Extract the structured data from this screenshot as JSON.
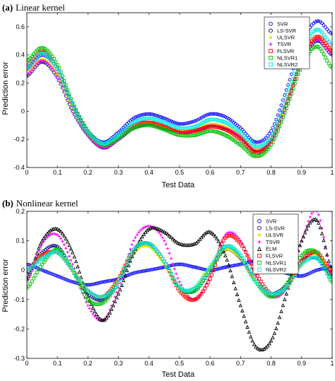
{
  "chart_data": [
    {
      "type": "line",
      "title": "(a) Linear kernel",
      "title_label": "(a)",
      "title_text": "Linear kernel",
      "xlabel": "Test Data",
      "ylabel": "Prediction error",
      "xlim": [
        0,
        1
      ],
      "ylim": [
        -0.4,
        0.7
      ],
      "xticks": [
        "0",
        "0.1",
        "0.2",
        "0.3",
        "0.4",
        "0.5",
        "0.6",
        "0.7",
        "0.8",
        "0.9",
        "1"
      ],
      "yticks": [
        "-0.4",
        "-0.2",
        "0",
        "0.2",
        "0.4",
        "0.6"
      ],
      "ytick_values": [
        -0.4,
        -0.2,
        0,
        0.2,
        0.4,
        0.6
      ],
      "legend_position": "top-right",
      "x": [
        0,
        0.05,
        0.1,
        0.15,
        0.2,
        0.25,
        0.3,
        0.35,
        0.4,
        0.45,
        0.5,
        0.55,
        0.6,
        0.65,
        0.7,
        0.75,
        0.8,
        0.85,
        0.9,
        0.95,
        1
      ],
      "series": [
        {
          "name": "SVR",
          "color": "#0000ff",
          "marker": "circle",
          "values": [
            0.3,
            0.4,
            0.3,
            0.05,
            -0.14,
            -0.22,
            -0.15,
            -0.05,
            -0.02,
            -0.05,
            -0.09,
            -0.07,
            -0.02,
            -0.04,
            -0.12,
            -0.22,
            -0.14,
            0.15,
            0.48,
            0.64,
            0.55
          ]
        },
        {
          "name": "LS-SVR",
          "color": "#000080",
          "marker": "circle",
          "values": [
            0.25,
            0.35,
            0.24,
            0.0,
            -0.17,
            -0.26,
            -0.2,
            -0.12,
            -0.09,
            -0.12,
            -0.15,
            -0.14,
            -0.1,
            -0.12,
            -0.18,
            -0.28,
            -0.2,
            0.06,
            0.35,
            0.5,
            0.4
          ]
        },
        {
          "name": "ULSVR",
          "color": "#e8e800",
          "marker": "star",
          "values": [
            0.27,
            0.37,
            0.26,
            0.02,
            -0.16,
            -0.25,
            -0.19,
            -0.11,
            -0.08,
            -0.11,
            -0.14,
            -0.13,
            -0.09,
            -0.11,
            -0.17,
            -0.27,
            -0.19,
            0.07,
            0.37,
            0.52,
            0.42
          ]
        },
        {
          "name": "TSVR",
          "color": "#ff00ff",
          "marker": "plus",
          "values": [
            0.26,
            0.36,
            0.25,
            0.01,
            -0.17,
            -0.26,
            -0.2,
            -0.12,
            -0.09,
            -0.12,
            -0.15,
            -0.14,
            -0.1,
            -0.12,
            -0.18,
            -0.28,
            -0.2,
            0.06,
            0.36,
            0.51,
            0.41
          ]
        },
        {
          "name": "FLSVR",
          "color": "#ff0000",
          "marker": "square",
          "values": [
            0.32,
            0.42,
            0.3,
            0.04,
            -0.15,
            -0.24,
            -0.18,
            -0.1,
            -0.08,
            -0.11,
            -0.15,
            -0.14,
            -0.11,
            -0.13,
            -0.2,
            -0.29,
            -0.22,
            0.04,
            0.36,
            0.53,
            0.43
          ]
        },
        {
          "name": "NLSVR1",
          "color": "#00c000",
          "marker": "square",
          "values": [
            0.36,
            0.45,
            0.33,
            0.06,
            -0.14,
            -0.24,
            -0.19,
            -0.12,
            -0.1,
            -0.13,
            -0.17,
            -0.17,
            -0.14,
            -0.17,
            -0.24,
            -0.32,
            -0.24,
            0.02,
            0.32,
            0.46,
            0.31
          ]
        },
        {
          "name": "NLSVR2",
          "color": "#00e8e8",
          "marker": "square",
          "values": [
            0.31,
            0.41,
            0.3,
            0.04,
            -0.15,
            -0.23,
            -0.17,
            -0.08,
            -0.05,
            -0.08,
            -0.12,
            -0.11,
            -0.06,
            -0.08,
            -0.15,
            -0.25,
            -0.18,
            0.1,
            0.42,
            0.58,
            0.47
          ]
        }
      ]
    },
    {
      "type": "line",
      "title": "(b) Nonlinear kernel",
      "title_label": "(b)",
      "title_text": "Nonlinear kernel",
      "xlabel": "Test Data",
      "ylabel": "Prediction error",
      "xlim": [
        0,
        1
      ],
      "ylim": [
        -0.3,
        0.2
      ],
      "xticks": [
        "0",
        "0.1",
        "0.2",
        "0.3",
        "0.4",
        "0.5",
        "0.6",
        "0.7",
        "0.8",
        "0.9",
        "1"
      ],
      "yticks": [
        "-0.3",
        "-0.2",
        "-0.1",
        "0",
        "0.1",
        "0.2"
      ],
      "ytick_values": [
        -0.3,
        -0.2,
        -0.1,
        0,
        0.1,
        0.2
      ],
      "legend_position": "top-right",
      "x": [
        0,
        0.05,
        0.1,
        0.15,
        0.2,
        0.25,
        0.3,
        0.35,
        0.4,
        0.45,
        0.5,
        0.55,
        0.6,
        0.65,
        0.7,
        0.75,
        0.8,
        0.85,
        0.9,
        0.95,
        1
      ],
      "series": [
        {
          "name": "SVR",
          "color": "#0000ff",
          "marker": "circle",
          "values": [
            0.02,
            0.0,
            -0.02,
            -0.04,
            -0.05,
            -0.04,
            -0.03,
            -0.01,
            0.0,
            0.01,
            0.02,
            0.01,
            0.0,
            0.01,
            0.02,
            0.03,
            0.01,
            -0.01,
            -0.02,
            0.0,
            0.01
          ]
        },
        {
          "name": "LS-SVR",
          "color": "#000080",
          "marker": "circle",
          "values": [
            -0.01,
            0.06,
            0.08,
            0.0,
            -0.08,
            -0.1,
            -0.04,
            0.06,
            0.09,
            0.03,
            -0.06,
            -0.07,
            0.0,
            0.07,
            0.04,
            -0.04,
            -0.08,
            -0.05,
            0.03,
            0.04,
            -0.02
          ]
        },
        {
          "name": "ULSVR",
          "color": "#e8e800",
          "marker": "star",
          "values": [
            0.0,
            0.05,
            0.06,
            0.0,
            -0.07,
            -0.09,
            -0.03,
            0.06,
            0.08,
            0.02,
            -0.06,
            -0.06,
            0.01,
            0.07,
            0.04,
            -0.04,
            -0.08,
            -0.06,
            0.02,
            0.05,
            0.0
          ]
        },
        {
          "name": "TSVR",
          "color": "#ff00ff",
          "marker": "plus",
          "values": [
            -0.04,
            0.09,
            0.12,
            0.02,
            -0.12,
            -0.17,
            -0.06,
            0.1,
            0.15,
            0.1,
            -0.04,
            -0.1,
            -0.02,
            0.12,
            0.1,
            -0.02,
            -0.09,
            -0.06,
            0.1,
            0.2,
            -0.02
          ]
        },
        {
          "name": "ELM",
          "color": "#000000",
          "marker": "triangle",
          "values": [
            -0.03,
            0.1,
            0.14,
            0.06,
            -0.09,
            -0.17,
            -0.08,
            0.06,
            0.14,
            0.13,
            0.09,
            0.09,
            0.13,
            0.05,
            -0.12,
            -0.26,
            -0.24,
            -0.08,
            0.1,
            0.17,
            0.0
          ]
        },
        {
          "name": "FLSVR",
          "color": "#ff0000",
          "marker": "square",
          "values": [
            0.0,
            0.05,
            0.06,
            0.0,
            -0.07,
            -0.09,
            -0.03,
            0.07,
            0.09,
            0.03,
            -0.07,
            -0.1,
            -0.03,
            0.11,
            0.09,
            -0.01,
            -0.08,
            -0.06,
            0.03,
            0.06,
            -0.01
          ]
        },
        {
          "name": "NLSVR1",
          "color": "#00c000",
          "marker": "square",
          "values": [
            -0.06,
            0.02,
            0.07,
            0.0,
            -0.1,
            -0.11,
            -0.04,
            0.07,
            0.09,
            0.03,
            -0.06,
            -0.07,
            0.0,
            0.08,
            0.05,
            -0.04,
            -0.09,
            -0.05,
            0.05,
            0.06,
            -0.04
          ]
        },
        {
          "name": "NLSVR2",
          "color": "#00e8e8",
          "marker": "square",
          "values": [
            0.0,
            0.04,
            0.06,
            0.0,
            -0.07,
            -0.09,
            -0.04,
            0.07,
            0.09,
            0.03,
            -0.06,
            -0.06,
            0.01,
            0.08,
            0.05,
            -0.04,
            -0.08,
            -0.06,
            0.02,
            0.04,
            -0.03
          ]
        }
      ]
    }
  ]
}
